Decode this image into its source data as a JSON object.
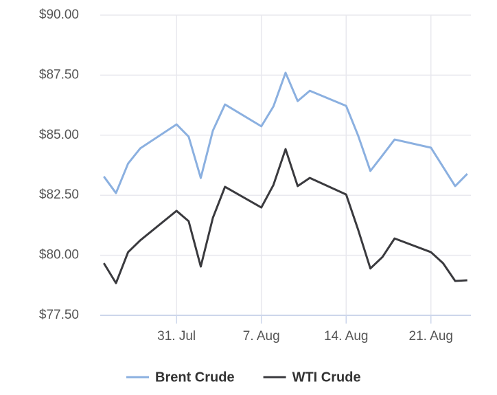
{
  "chart_data": {
    "type": "line",
    "x": [
      "25. Jul",
      "26. Jul",
      "27. Jul",
      "28. Jul",
      "31. Jul",
      "1. Aug",
      "2. Aug",
      "3. Aug",
      "4. Aug",
      "7. Aug",
      "8. Aug",
      "9. Aug",
      "10. Aug",
      "11. Aug",
      "14. Aug",
      "15. Aug",
      "16. Aug",
      "17. Aug",
      "18. Aug",
      "21. Aug",
      "22. Aug",
      "23. Aug",
      "24. Aug"
    ],
    "series": [
      {
        "name": "Brent Crude",
        "color": "#8bb0e0",
        "values": [
          83.28,
          82.59,
          83.82,
          84.45,
          85.45,
          84.94,
          83.22,
          85.19,
          86.28,
          85.37,
          86.2,
          87.6,
          86.42,
          86.85,
          86.22,
          84.97,
          83.51,
          84.16,
          84.82,
          84.48,
          83.68,
          82.88,
          83.39
        ]
      },
      {
        "name": "WTI Crude",
        "color": "#3a3a3e",
        "values": [
          79.67,
          78.84,
          80.13,
          80.62,
          81.85,
          81.42,
          79.53,
          81.56,
          82.85,
          81.99,
          82.93,
          84.42,
          82.88,
          83.22,
          82.53,
          81.05,
          79.45,
          79.93,
          80.7,
          80.13,
          79.67,
          78.93,
          78.96
        ]
      }
    ],
    "ylim": [
      77.5,
      90
    ],
    "yticks": [
      {
        "value": 77.5,
        "label": "$77.50"
      },
      {
        "value": 80,
        "label": "$80.00"
      },
      {
        "value": 82.5,
        "label": "$82.50"
      },
      {
        "value": 85,
        "label": "$85.00"
      },
      {
        "value": 87.5,
        "label": "$87.50"
      },
      {
        "value": 90,
        "label": "$90.00"
      }
    ],
    "xticks": [
      "31. Jul",
      "7. Aug",
      "14. Aug",
      "21. Aug"
    ],
    "grid": true
  }
}
